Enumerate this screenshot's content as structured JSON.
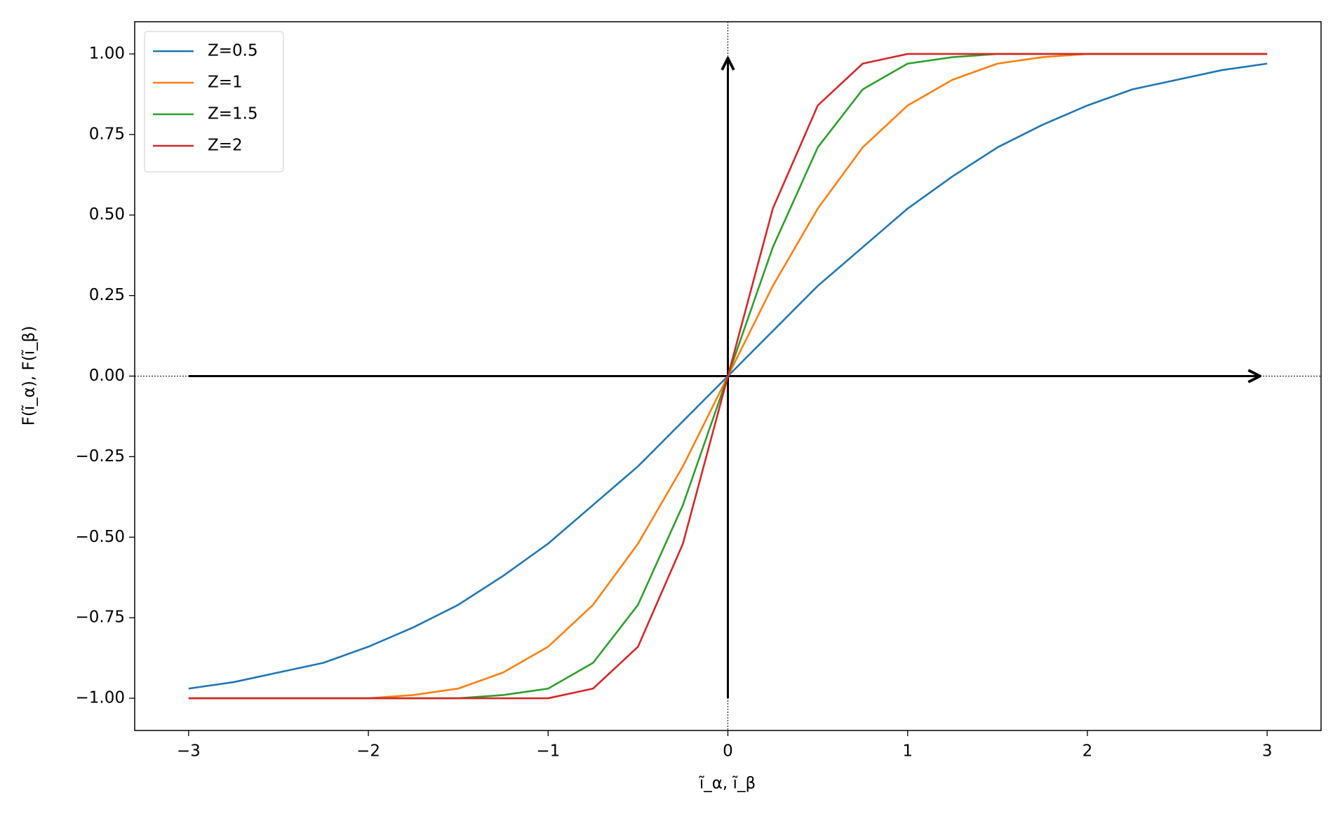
{
  "chart_data": {
    "type": "line",
    "x_label": "ĩ_α, ĩ_β",
    "y_label": "F(ĩ_α), F(ĩ_β)",
    "x": [
      -3,
      -2.75,
      -2.5,
      -2.25,
      -2,
      -1.75,
      -1.5,
      -1.25,
      -1,
      -0.75,
      -0.5,
      -0.25,
      0,
      0.25,
      0.5,
      0.75,
      1,
      1.25,
      1.5,
      1.75,
      2,
      2.25,
      2.5,
      2.75,
      3
    ],
    "series": [
      {
        "name": "Z=0.5",
        "color": "#1f77b4",
        "values": [
          -0.97,
          -0.95,
          -0.92,
          -0.89,
          -0.84,
          -0.78,
          -0.71,
          -0.62,
          -0.52,
          -0.4,
          -0.28,
          -0.14,
          0,
          0.14,
          0.28,
          0.4,
          0.52,
          0.62,
          0.71,
          0.78,
          0.84,
          0.89,
          0.92,
          0.95,
          0.97
        ]
      },
      {
        "name": "Z=1",
        "color": "#ff7f0e",
        "values": [
          -1,
          -1,
          -1,
          -1,
          -1,
          -0.99,
          -0.97,
          -0.92,
          -0.84,
          -0.71,
          -0.52,
          -0.28,
          0,
          0.28,
          0.52,
          0.71,
          0.84,
          0.92,
          0.97,
          0.99,
          1,
          1,
          1,
          1,
          1
        ]
      },
      {
        "name": "Z=1.5",
        "color": "#2ca02c",
        "values": [
          -1,
          -1,
          -1,
          -1,
          -1,
          -1,
          -1,
          -0.99,
          -0.97,
          -0.89,
          -0.71,
          -0.4,
          0,
          0.4,
          0.71,
          0.89,
          0.97,
          0.99,
          1,
          1,
          1,
          1,
          1,
          1,
          1
        ]
      },
      {
        "name": "Z=2",
        "color": "#d62728",
        "values": [
          -1,
          -1,
          -1,
          -1,
          -1,
          -1,
          -1,
          -1,
          -1,
          -0.97,
          -0.84,
          -0.52,
          0,
          0.52,
          0.84,
          0.97,
          1,
          1,
          1,
          1,
          1,
          1,
          1,
          1,
          1
        ]
      }
    ],
    "xlim": [
      -3.3,
      3.3
    ],
    "xticks": [
      {
        "value": -3,
        "label": "−3"
      },
      {
        "value": -2,
        "label": "−2"
      },
      {
        "value": -1,
        "label": "−1"
      },
      0,
      1,
      2,
      3
    ],
    "ylim": [
      -1.1,
      1.1
    ],
    "yticks": [
      {
        "value": -1,
        "label": "−1.00"
      },
      {
        "value": -0.75,
        "label": "−0.75"
      },
      {
        "value": -0.5,
        "label": "−0.50"
      },
      {
        "value": -0.25,
        "label": "−0.25"
      },
      {
        "value": 0,
        "label": "0.00"
      },
      {
        "value": 0.25,
        "label": "0.25"
      },
      {
        "value": 0.5,
        "label": "0.50"
      },
      {
        "value": 0.75,
        "label": "0.75"
      },
      {
        "value": 1,
        "label": "1.00"
      }
    ],
    "legend": "upper left",
    "grid": false
  }
}
